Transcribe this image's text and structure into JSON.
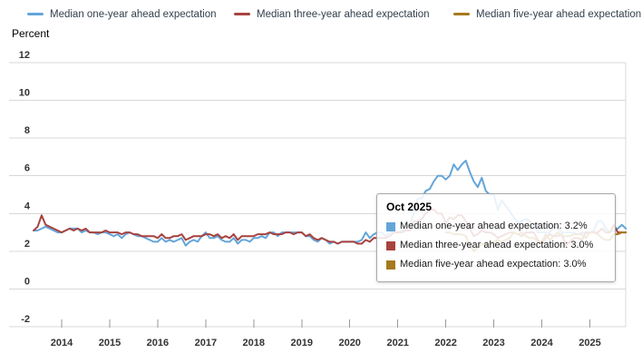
{
  "y_axis_title": "Percent",
  "tooltip": {
    "title": "Oct 2025",
    "items": [
      {
        "text": "Median one-year ahead expectation: 3.2%"
      },
      {
        "text": "Median three-year ahead expectation: 3.0%"
      },
      {
        "text": "Median five-year ahead expectation: 3.0%"
      }
    ]
  },
  "chart_data": {
    "type": "line",
    "title": "",
    "xlabel": "",
    "ylabel": "Percent",
    "ylim": [
      -2,
      12
    ],
    "y_ticks": [
      12,
      10,
      8,
      6,
      4,
      2,
      0,
      -2
    ],
    "x_ticks": [
      "2014",
      "2015",
      "2016",
      "2017",
      "2018",
      "2019",
      "2020",
      "2021",
      "2022",
      "2023",
      "2024",
      "2025"
    ],
    "x_range": "Jun 2013 - Oct 2025",
    "frequency": "monthly",
    "grid": true,
    "legend_position": "top",
    "highlighted_point": {
      "date": "Oct 2025",
      "values": [
        3.2,
        3.0,
        3.0
      ]
    },
    "series": [
      {
        "name": "Median one-year ahead expectation",
        "color": "#64A5D9",
        "start": "2013-06",
        "values": [
          3.1,
          3.1,
          3.2,
          3.3,
          3.2,
          3.1,
          3.0,
          3.0,
          3.1,
          3.2,
          3.2,
          3.2,
          3.0,
          3.1,
          3.0,
          3.0,
          2.9,
          3.0,
          3.0,
          2.9,
          2.8,
          2.9,
          2.7,
          2.9,
          3.0,
          2.9,
          2.8,
          2.8,
          2.7,
          2.6,
          2.5,
          2.5,
          2.7,
          2.5,
          2.6,
          2.5,
          2.6,
          2.7,
          2.3,
          2.5,
          2.6,
          2.5,
          2.8,
          3.0,
          2.7,
          2.7,
          2.8,
          2.6,
          2.5,
          2.5,
          2.7,
          2.4,
          2.6,
          2.6,
          2.5,
          2.7,
          2.7,
          2.8,
          2.7,
          3.0,
          3.0,
          2.8,
          3.0,
          3.0,
          3.0,
          3.0,
          3.0,
          3.0,
          2.8,
          2.8,
          2.6,
          2.5,
          2.7,
          2.6,
          2.4,
          2.5,
          2.4,
          2.5,
          2.5,
          2.5,
          2.5,
          2.5,
          2.6,
          3.0,
          2.7,
          2.9,
          3.0,
          3.0,
          2.8,
          3.0,
          3.0,
          3.0,
          3.1,
          3.2,
          3.4,
          4.0,
          4.8,
          4.8,
          5.2,
          5.3,
          5.7,
          6.0,
          6.0,
          5.8,
          6.0,
          6.6,
          6.3,
          6.6,
          6.8,
          6.2,
          5.7,
          5.4,
          5.9,
          5.2,
          5.0,
          5.0,
          4.2,
          4.7,
          4.4,
          4.1,
          3.8,
          3.5,
          3.6,
          3.7,
          3.6,
          3.4,
          3.0,
          3.0,
          3.0,
          3.0,
          3.3,
          3.2,
          3.0,
          3.0,
          3.0,
          3.0,
          2.9,
          3.0,
          3.0,
          3.0,
          3.1,
          3.6,
          3.6,
          3.2,
          3.0,
          3.1,
          3.2,
          3.4,
          3.2
        ]
      },
      {
        "name": "Median three-year ahead expectation",
        "color": "#A8423F",
        "start": "2013-06",
        "values": [
          3.1,
          3.3,
          3.9,
          3.4,
          3.3,
          3.2,
          3.1,
          3.0,
          3.1,
          3.2,
          3.1,
          3.2,
          3.1,
          3.2,
          3.0,
          3.0,
          3.0,
          3.0,
          3.1,
          3.0,
          3.0,
          3.0,
          2.9,
          3.0,
          3.0,
          2.9,
          2.9,
          2.8,
          2.8,
          2.8,
          2.8,
          2.7,
          2.9,
          2.7,
          2.7,
          2.8,
          2.8,
          2.9,
          2.6,
          2.7,
          2.8,
          2.8,
          2.8,
          2.9,
          2.9,
          2.8,
          2.9,
          2.7,
          2.8,
          2.7,
          2.9,
          2.6,
          2.8,
          2.8,
          2.8,
          2.8,
          2.9,
          2.9,
          2.9,
          3.0,
          2.9,
          2.9,
          2.9,
          3.0,
          3.0,
          2.9,
          3.0,
          3.0,
          2.8,
          2.9,
          2.7,
          2.6,
          2.7,
          2.6,
          2.5,
          2.5,
          2.4,
          2.5,
          2.5,
          2.5,
          2.5,
          2.4,
          2.4,
          2.6,
          2.5,
          2.7,
          2.7,
          2.7,
          2.7,
          2.8,
          3.0,
          3.0,
          3.0,
          3.1,
          3.1,
          3.6,
          3.6,
          3.7,
          4.0,
          4.2,
          4.2,
          4.0,
          4.0,
          3.5,
          3.8,
          3.7,
          3.9,
          3.9,
          3.6,
          3.2,
          2.8,
          2.9,
          3.1,
          3.0,
          3.0,
          2.9,
          2.7,
          2.8,
          2.9,
          3.0,
          3.0,
          2.9,
          2.8,
          3.0,
          3.0,
          3.0,
          2.6,
          2.4,
          2.7,
          2.9,
          2.8,
          2.8,
          2.9,
          2.3,
          2.5,
          2.7,
          2.7,
          2.6,
          3.0,
          3.0,
          3.0,
          3.0,
          3.2,
          3.0,
          3.0,
          3.4,
          3.0,
          3.0,
          3.0
        ]
      },
      {
        "name": "Median five-year ahead expectation",
        "color": "#A6791E",
        "start": "2022-01",
        "values": [
          3.0,
          3.0,
          2.9,
          2.9,
          2.9,
          2.8,
          2.3,
          2.0,
          2.2,
          2.4,
          2.3,
          2.4,
          2.5,
          2.6,
          2.5,
          2.6,
          2.7,
          3.0,
          2.9,
          3.0,
          2.8,
          2.7,
          2.7,
          2.5,
          2.5,
          2.9,
          2.6,
          2.8,
          3.0,
          2.8,
          2.8,
          2.8,
          2.9,
          2.9,
          2.9,
          2.7,
          3.0,
          3.0,
          2.9,
          2.7,
          2.6,
          2.6,
          2.9,
          2.9,
          3.0,
          3.0
        ]
      }
    ]
  }
}
